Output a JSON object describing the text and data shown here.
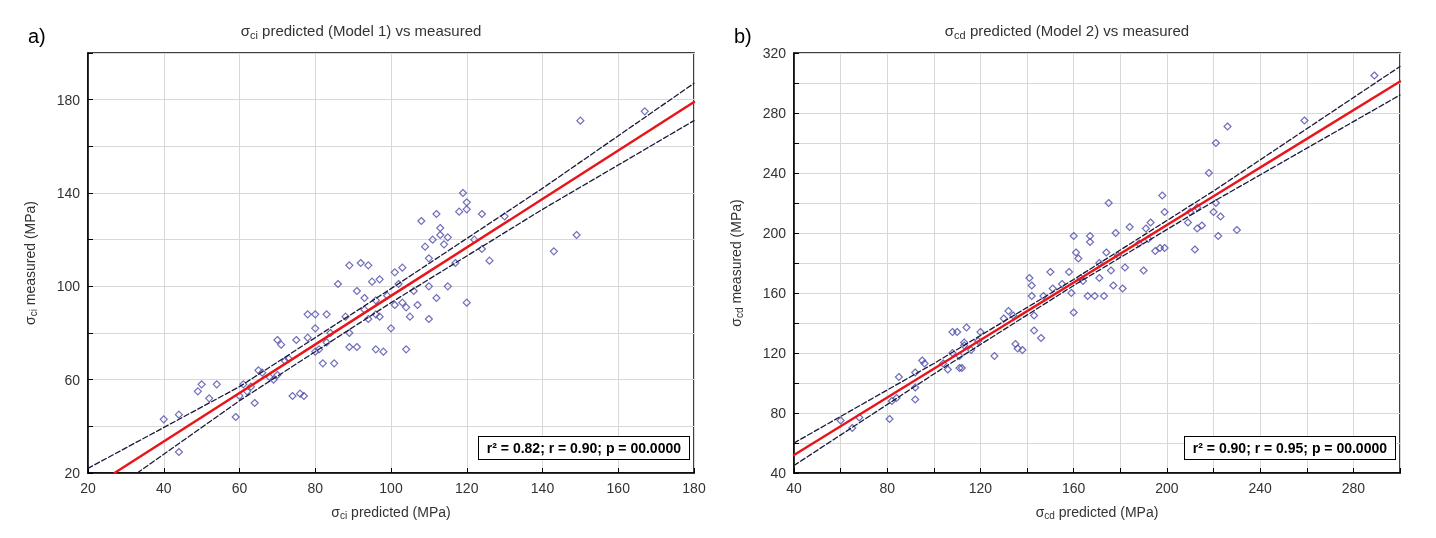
{
  "chart_data": [
    {
      "type": "scatter",
      "title": "σ$_{ci}$ predicted (Model 1) vs measured",
      "xlabel": "σ$_{ci}$ predicted (MPa)",
      "ylabel": "σ$_{ci}$ measured (MPa)",
      "annotations": [
        "a)",
        "r² = 0.82;  r = 0.90; p = 00.0000"
      ],
      "xlim": [
        20,
        180
      ],
      "xticks": [
        20,
        40,
        60,
        80,
        100,
        120,
        140,
        160,
        180
      ],
      "ylim": [
        20,
        200
      ],
      "yticks": [
        20,
        {
          "value": 40,
          "label": null
        },
        60,
        {
          "value": 80,
          "label": null
        },
        100,
        {
          "value": 120,
          "label": null
        },
        140,
        {
          "value": 160,
          "label": null
        },
        180,
        {
          "value": 200,
          "label": null
        }
      ],
      "grid": true,
      "series": [
        {
          "marker": "diamond",
          "color": "#4b4ba8",
          "x": [
            40,
            44,
            44,
            49,
            50,
            52,
            54,
            59,
            60,
            61,
            62,
            63,
            64,
            65,
            66,
            68,
            69,
            70,
            70,
            71,
            72,
            73,
            74,
            75,
            76,
            77,
            78,
            78,
            80,
            80,
            80,
            81,
            82,
            83,
            83,
            84,
            85,
            86,
            88,
            89,
            89,
            89,
            91,
            91,
            92,
            93,
            93,
            94,
            94,
            95,
            96,
            96,
            96,
            97,
            97,
            98,
            99,
            100,
            101,
            101,
            102,
            103,
            103,
            104,
            104,
            105,
            106,
            107,
            108,
            109,
            110,
            110,
            110,
            111,
            112,
            112,
            113,
            113,
            114,
            115,
            115,
            117,
            118,
            119,
            120,
            120,
            120,
            122,
            124,
            124,
            126,
            130,
            143,
            149,
            150,
            167
          ],
          "values": [
            43,
            45,
            29,
            55,
            58,
            52,
            58,
            44,
            53,
            58,
            55,
            57,
            50,
            64,
            63,
            61,
            60,
            62,
            77,
            75,
            68,
            69,
            53,
            77,
            54,
            53,
            88,
            78,
            88,
            82,
            72,
            73,
            67,
            88,
            76,
            80,
            67,
            101,
            87,
            80,
            74,
            109,
            74,
            98,
            110,
            95,
            90,
            109,
            86,
            102,
            88,
            94,
            73,
            103,
            87,
            72,
            96,
            82,
            92,
            106,
            101,
            108,
            93,
            91,
            73,
            87,
            98,
            92,
            128,
            117,
            112,
            100,
            86,
            120,
            131,
            95,
            125,
            122,
            118,
            100,
            121,
            110,
            132,
            140,
            136,
            133,
            93,
            120,
            116,
            131,
            111,
            130,
            115,
            122,
            171,
            175
          ]
        },
        {
          "type": "line",
          "color": "#e8161b",
          "line_style": "solid",
          "x": [
            27,
            60,
            100,
            140,
            180
          ],
          "values": [
            20,
            54.3,
            95.9,
            137.4,
            179
          ]
        },
        {
          "type": "line",
          "color": "#1a1a3a",
          "line_style": "dashed",
          "x": [
            20,
            60,
            100,
            140,
            180
          ],
          "values": [
            22,
            57,
            99,
            142,
            187
          ]
        },
        {
          "type": "line",
          "color": "#1a1a3a",
          "line_style": "dashed",
          "x": [
            33,
            60,
            100,
            140,
            180
          ],
          "values": [
            20,
            51,
            93,
            133,
            171
          ]
        }
      ]
    },
    {
      "type": "scatter",
      "title": "σ$_{cd}$ predicted (Model 2) vs measured",
      "xlabel": "σ$_{cd}$ predicted (MPa)",
      "ylabel": "σ$_{cd}$ measured (MPa)",
      "annotations": [
        "b)",
        "r² = 0.90;  r = 0.95; p = 00.0000"
      ],
      "xlim": [
        40,
        300
      ],
      "xticks": [
        40,
        {
          "value": 60,
          "label": null
        },
        80,
        {
          "value": 100,
          "label": null
        },
        120,
        {
          "value": 140,
          "label": null
        },
        160,
        {
          "value": 180,
          "label": null
        },
        200,
        {
          "value": 220,
          "label": null
        },
        240,
        {
          "value": 260,
          "label": null
        },
        280,
        {
          "value": 300,
          "label": null
        }
      ],
      "ylim": [
        40,
        320
      ],
      "yticks": [
        40,
        {
          "value": 60,
          "label": null
        },
        80,
        {
          "value": 100,
          "label": null
        },
        120,
        {
          "value": 140,
          "label": null
        },
        160,
        {
          "value": 180,
          "label": null
        },
        200,
        {
          "value": 220,
          "label": null
        },
        240,
        {
          "value": 260,
          "label": null
        },
        280,
        {
          "value": 300,
          "label": null
        },
        320
      ],
      "grid": true,
      "series": [
        {
          "marker": "diamond",
          "color": "#4b4ba8",
          "x": [
            60,
            65,
            68,
            81,
            82,
            84,
            85,
            92,
            92,
            92,
            95,
            96,
            104,
            106,
            108,
            108,
            110,
            111,
            111,
            112,
            113,
            114,
            113,
            116,
            119,
            120,
            126,
            130,
            132,
            134,
            135,
            136,
            138,
            141,
            142,
            142,
            143,
            143,
            146,
            147,
            150,
            151,
            155,
            158,
            159,
            160,
            160,
            161,
            162,
            163,
            164,
            166,
            167,
            167,
            169,
            171,
            171,
            173,
            174,
            175,
            176,
            177,
            178,
            179,
            181,
            182,
            184,
            188,
            190,
            191,
            192,
            193,
            195,
            197,
            198,
            199,
            199,
            209,
            210,
            212,
            213,
            213,
            215,
            218,
            220,
            221,
            221,
            222,
            223,
            226,
            230,
            259,
            289
          ],
          "values": [
            75,
            70,
            77,
            76,
            88,
            90,
            104,
            97,
            89,
            107,
            115,
            113,
            113,
            109,
            120,
            134,
            134,
            110,
            118,
            110,
            125,
            137,
            127,
            122,
            128,
            134,
            118,
            143,
            148,
            145,
            126,
            123,
            122,
            170,
            165,
            158,
            135,
            145,
            130,
            158,
            174,
            163,
            166,
            174,
            160,
            147,
            198,
            187,
            183,
            170,
            168,
            158,
            194,
            198,
            158,
            170,
            180,
            158,
            187,
            220,
            175,
            165,
            200,
            185,
            163,
            177,
            204,
            193,
            175,
            203,
            196,
            207,
            188,
            190,
            225,
            214,
            190,
            207,
            214,
            189,
            217,
            203,
            205,
            240,
            214,
            260,
            220,
            198,
            211,
            271,
            202,
            275,
            305
          ]
        },
        {
          "type": "line",
          "color": "#e8161b",
          "line_style": "solid",
          "x": [
            40,
            100,
            160,
            220,
            300
          ],
          "values": [
            52,
            109.5,
            167,
            224.5,
            301
          ]
        },
        {
          "type": "line",
          "color": "#1a1a3a",
          "line_style": "dashed",
          "x": [
            40,
            100,
            160,
            220,
            300
          ],
          "values": [
            60,
            113,
            169,
            228,
            311
          ]
        },
        {
          "type": "line",
          "color": "#1a1a3a",
          "line_style": "dashed",
          "x": [
            40,
            100,
            160,
            220,
            300
          ],
          "values": [
            45,
            106,
            165,
            221,
            292
          ]
        }
      ]
    }
  ]
}
